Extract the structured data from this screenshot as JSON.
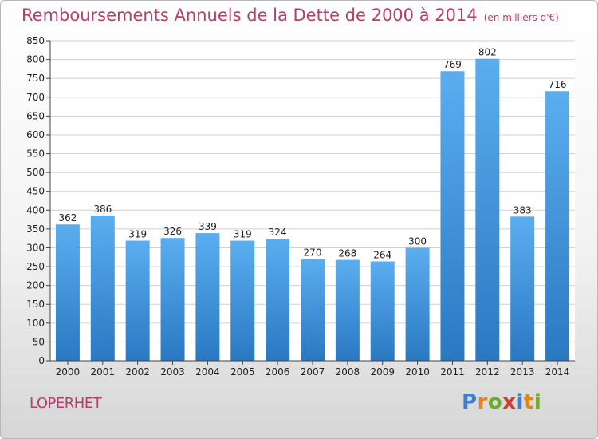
{
  "title": "Remboursements Annuels de la Dette de 2000 à 2014",
  "unit_label": "(en milliers d'€)",
  "commune": "LOPERHET",
  "logo": {
    "text": "Proxiti",
    "letter_colors": [
      "#3a7fd0",
      "#e0861d",
      "#6aad2d",
      "#d43a2e",
      "#3a7fd0",
      "#e0861d",
      "#6aad2d"
    ]
  },
  "colors": {
    "bar_top": "#5aaef0",
    "bar_bottom": "#2a78c2",
    "title": "#b33f6a",
    "grid": "#d0d0d0",
    "axis": "#444444"
  },
  "chart_data": {
    "type": "bar",
    "categories": [
      "2000",
      "2001",
      "2002",
      "2003",
      "2004",
      "2005",
      "2006",
      "2007",
      "2008",
      "2009",
      "2010",
      "2011",
      "2012",
      "2013",
      "2014"
    ],
    "values": [
      362,
      386,
      319,
      326,
      339,
      319,
      324,
      270,
      268,
      264,
      300,
      769,
      802,
      383,
      716
    ],
    "ylim": [
      0,
      850
    ],
    "yticks": [
      0,
      50,
      100,
      150,
      200,
      250,
      300,
      350,
      400,
      450,
      500,
      550,
      600,
      650,
      700,
      750,
      800,
      850
    ],
    "grid": true,
    "data_labels": true
  }
}
